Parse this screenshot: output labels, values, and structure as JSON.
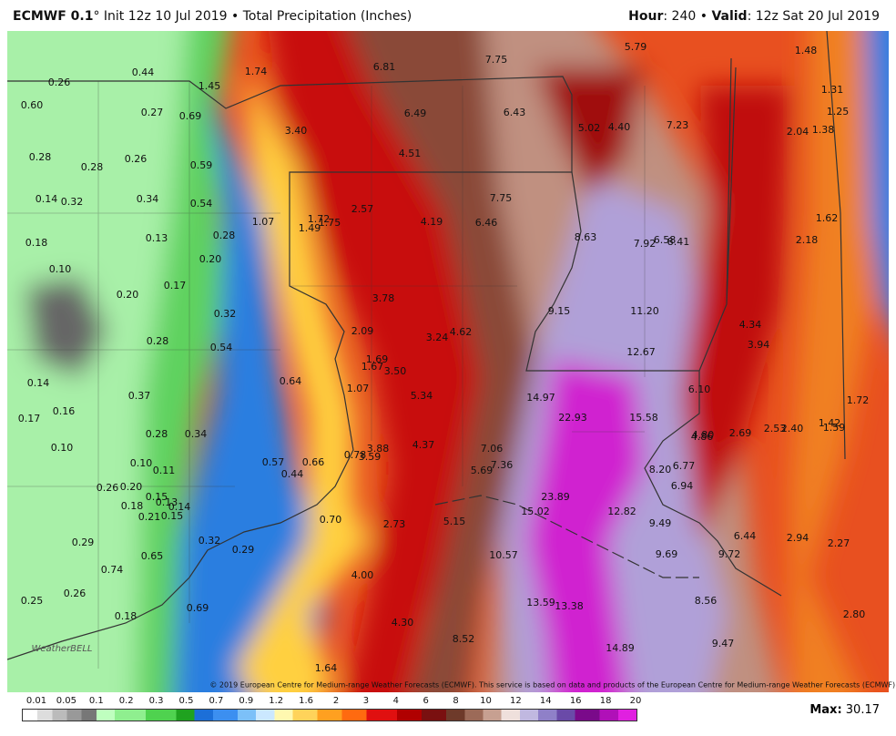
{
  "header": {
    "left_bold": "ECMWF 0.1",
    "left_rest": "° Init 12z 10 Jul 2019 • Total Precipitation (Inches)",
    "right_hour_key": "Hour",
    "right_hour_rest": ": 240 • ",
    "right_valid_key": "Valid",
    "right_valid_rest": ": 12z Sat 20 Jul 2019"
  },
  "map": {
    "logo": "WeatherBELL",
    "copyright": "© 2019 European Centre for Medium-range Weather Forecasts (ECMWF). This service is based on data and products of the European Centre for Medium-range Weather Forecasts (ECMWF).",
    "labels": [
      "0.26",
      "0.44",
      "1.74",
      "6.81",
      "7.75",
      "5.79",
      "1.48",
      "0.60",
      "0.27",
      "0.69",
      "1.45",
      "6.49",
      "6.43",
      "5.02",
      "4.40",
      "7.23",
      "1.31",
      "1.25",
      "2.04",
      "1.38",
      "3.40",
      "4.51",
      "0.28",
      "0.28",
      "0.26",
      "0.59",
      "0.14",
      "0.32",
      "0.34",
      "0.54",
      "7.75",
      "2.57",
      "1.07",
      "1.72",
      "1.75",
      "1.49",
      "4.19",
      "6.46",
      "1.62",
      "0.18",
      "0.13",
      "0.28",
      "8.63",
      "7.92",
      "6.58",
      "8.41",
      "2.18",
      "0.10",
      "0.20",
      "0.17",
      "0.20",
      "3.78",
      "0.32",
      "9.15",
      "11.20",
      "4.34",
      "0.28",
      "0.54",
      "2.09",
      "3.24",
      "4.62",
      "3.94",
      "12.67",
      "1.69",
      "1.67",
      "3.50",
      "0.14",
      "0.64",
      "1.07",
      "6.10",
      "0.37",
      "5.34",
      "14.97",
      "1.72",
      "0.16",
      "0.17",
      "22.93",
      "15.58",
      "1.42",
      "0.28",
      "0.34",
      "4.80",
      "4.86",
      "2.69",
      "2.53",
      "2.40",
      "1.59",
      "0.10",
      "4.37",
      "7.06",
      "0.78",
      "3.88",
      "3.59",
      "0.10",
      "0.11",
      "0.57",
      "0.66",
      "0.44",
      "7.36",
      "5.69",
      "8.20",
      "6.77",
      "0.26",
      "0.20",
      "6.94",
      "0.15",
      "0.13",
      "0.14",
      "0.18",
      "23.89",
      "15.02",
      "12.82",
      "0.21",
      "0.15",
      "0.70",
      "2.73",
      "5.15",
      "9.49",
      "0.29",
      "0.32",
      "0.29",
      "6.44",
      "2.94",
      "2.27",
      "0.65",
      "10.57",
      "9.69",
      "9.72",
      "0.74",
      "4.00",
      "0.25",
      "0.26",
      "13.59",
      "13.38",
      "8.56",
      "0.69",
      "0.18",
      "2.80",
      "4.30",
      "8.52",
      "9.47",
      "14.89",
      "1.64"
    ]
  },
  "colorbar": {
    "labels": [
      "0.01",
      "0.05",
      "0.1",
      "0.2",
      "0.3",
      "0.5",
      "0.7",
      "0.9",
      "1.2",
      "1.6",
      "2",
      "3",
      "4",
      "6",
      "8",
      "10",
      "12",
      "14",
      "16",
      "18",
      "20"
    ]
  },
  "footer": {
    "max_key": "Max:",
    "max_value": "30.17"
  }
}
